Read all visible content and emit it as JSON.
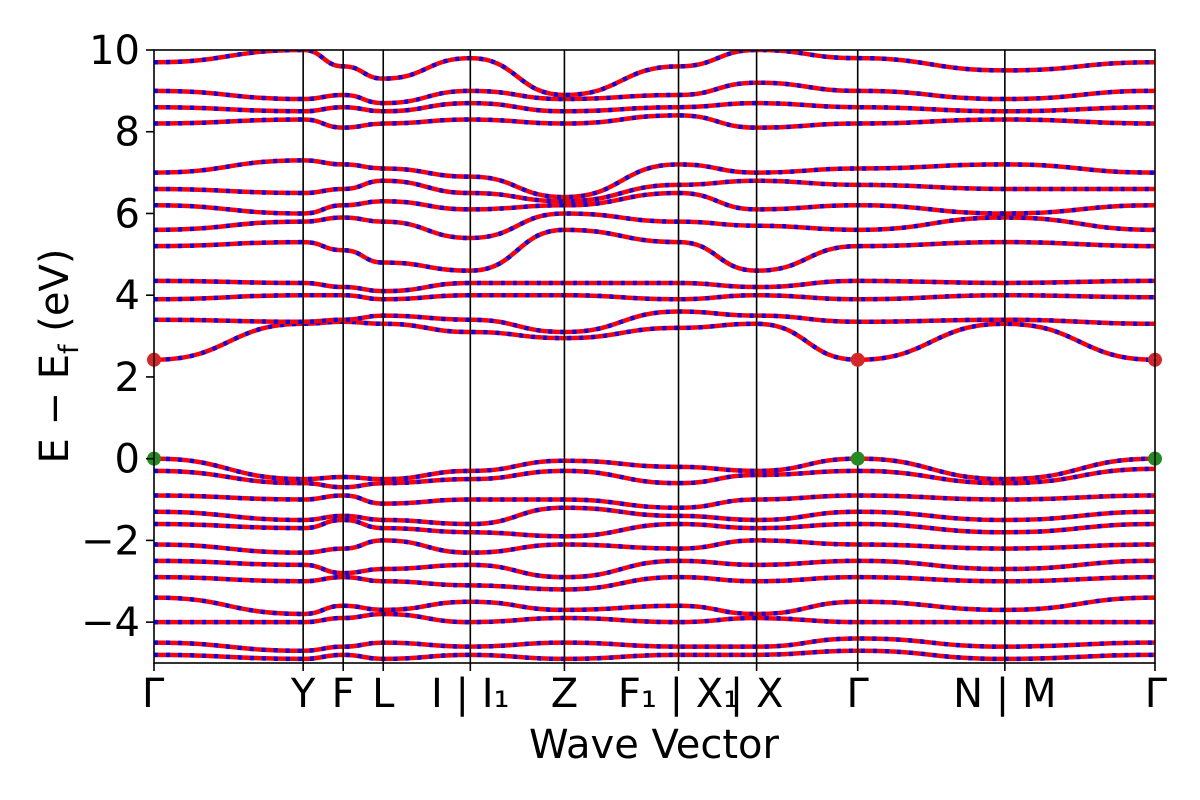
{
  "colors": {
    "band_primary": "#ff0000",
    "band_secondary": "#0000ff",
    "cbm_marker": "#d62728",
    "vbm_marker": "#228b22",
    "axes": "#000000",
    "background": "#ffffff"
  },
  "chart_data": {
    "type": "line",
    "title": "",
    "xlabel": "Wave Vector",
    "ylabel_main": "E − E",
    "ylabel_sub": "f",
    "ylabel_unit": " (eV)",
    "ylim": [
      -5,
      10
    ],
    "yticks": [
      {
        "value": -4,
        "label": "−4"
      },
      {
        "value": -2,
        "label": "−2"
      },
      {
        "value": 0,
        "label": "0"
      },
      {
        "value": 2,
        "label": "2"
      },
      {
        "value": 4,
        "label": "4"
      },
      {
        "value": 6,
        "label": "6"
      },
      {
        "value": 8,
        "label": "8"
      },
      {
        "value": 10,
        "label": "10"
      }
    ],
    "xlim": [
      0,
      10
    ],
    "kpoints": [
      {
        "value": 0.0,
        "label": "Γ"
      },
      {
        "value": 1.49,
        "label": "Y"
      },
      {
        "value": 1.89,
        "label": "F"
      },
      {
        "value": 2.29,
        "label": "L"
      },
      {
        "value": 3.16,
        "label": "I | I₁"
      },
      {
        "value": 4.1,
        "label": "Z"
      },
      {
        "value": 5.24,
        "label": "F₁ | X₁"
      },
      {
        "value": 6.02,
        "label": "| X"
      },
      {
        "value": 7.03,
        "label": "Γ"
      },
      {
        "value": 8.5,
        "label": "N | M"
      },
      {
        "value": 10.0,
        "label": "Γ"
      }
    ],
    "grid": false,
    "legend": "none",
    "special_points": [
      {
        "name": "VBM",
        "x": 0.0,
        "y": 0.0
      },
      {
        "name": "VBM",
        "x": 7.03,
        "y": 0.0
      },
      {
        "name": "VBM",
        "x": 10.0,
        "y": 0.0
      },
      {
        "name": "CBM",
        "x": 0.0,
        "y": 2.42
      },
      {
        "name": "CBM",
        "x": 7.03,
        "y": 2.42
      },
      {
        "name": "CBM",
        "x": 10.0,
        "y": 2.42
      }
    ],
    "bands": [
      {
        "y": [
          2.42,
          3.3,
          3.35,
          3.3,
          3.1,
          2.95,
          3.2,
          3.3,
          2.42,
          3.3,
          2.42
        ]
      },
      {
        "y": [
          3.4,
          3.35,
          3.4,
          3.5,
          3.4,
          3.1,
          3.6,
          3.5,
          3.35,
          3.4,
          3.3
        ]
      },
      {
        "y": [
          3.9,
          4.0,
          4.0,
          3.9,
          4.0,
          4.0,
          3.9,
          4.0,
          3.9,
          4.0,
          3.95
        ]
      },
      {
        "y": [
          4.35,
          4.3,
          4.2,
          4.1,
          4.3,
          4.3,
          4.3,
          4.2,
          4.35,
          4.3,
          4.35
        ]
      },
      {
        "y": [
          5.2,
          5.3,
          5.1,
          4.8,
          4.6,
          5.6,
          5.3,
          4.6,
          5.2,
          5.3,
          5.2
        ]
      },
      {
        "y": [
          5.6,
          5.8,
          5.9,
          5.8,
          5.4,
          6.0,
          5.8,
          5.7,
          5.6,
          5.9,
          5.6
        ]
      },
      {
        "y": [
          6.2,
          6.0,
          6.2,
          6.3,
          6.1,
          6.2,
          6.5,
          6.1,
          6.2,
          6.0,
          6.2
        ]
      },
      {
        "y": [
          6.6,
          6.5,
          6.6,
          6.8,
          6.5,
          6.3,
          6.7,
          6.8,
          6.7,
          6.6,
          6.6
        ]
      },
      {
        "y": [
          7.0,
          7.3,
          7.2,
          7.1,
          6.9,
          6.4,
          7.2,
          7.0,
          7.1,
          7.2,
          7.0
        ]
      },
      {
        "y": [
          8.2,
          8.3,
          8.1,
          8.2,
          8.3,
          8.2,
          8.4,
          8.1,
          8.2,
          8.3,
          8.2
        ]
      },
      {
        "y": [
          8.6,
          8.5,
          8.6,
          8.5,
          8.7,
          8.5,
          8.6,
          8.7,
          8.6,
          8.5,
          8.6
        ]
      },
      {
        "y": [
          9.0,
          8.8,
          8.9,
          8.7,
          9.0,
          8.8,
          8.9,
          9.2,
          9.0,
          8.8,
          9.0
        ]
      },
      {
        "y": [
          9.7,
          10.0,
          9.6,
          9.3,
          9.8,
          8.9,
          9.6,
          10.0,
          9.8,
          9.5,
          9.7
        ]
      },
      {
        "y": [
          0.0,
          -0.5,
          -0.45,
          -0.5,
          -0.3,
          -0.05,
          -0.2,
          -0.3,
          0.0,
          -0.5,
          0.0
        ]
      },
      {
        "y": [
          -0.3,
          -0.6,
          -0.7,
          -0.6,
          -0.5,
          -0.3,
          -0.6,
          -0.4,
          -0.3,
          -0.6,
          -0.25
        ]
      },
      {
        "y": [
          -0.9,
          -1.0,
          -0.9,
          -1.1,
          -1.0,
          -1.0,
          -1.2,
          -1.0,
          -0.9,
          -1.0,
          -0.9
        ]
      },
      {
        "y": [
          -1.3,
          -1.5,
          -1.4,
          -1.5,
          -1.6,
          -1.2,
          -1.4,
          -1.5,
          -1.3,
          -1.5,
          -1.3
        ]
      },
      {
        "y": [
          -1.6,
          -1.7,
          -1.5,
          -1.7,
          -1.8,
          -1.9,
          -1.6,
          -1.7,
          -1.6,
          -1.8,
          -1.6
        ]
      },
      {
        "y": [
          -2.1,
          -2.3,
          -2.2,
          -2.0,
          -2.3,
          -2.1,
          -2.2,
          -2.0,
          -2.1,
          -2.2,
          -2.1
        ]
      },
      {
        "y": [
          -2.5,
          -2.6,
          -2.8,
          -2.7,
          -2.6,
          -2.9,
          -2.5,
          -2.6,
          -2.5,
          -2.7,
          -2.5
        ]
      },
      {
        "y": [
          -2.9,
          -3.0,
          -2.9,
          -3.0,
          -3.1,
          -3.2,
          -2.9,
          -3.0,
          -2.9,
          -3.0,
          -2.9
        ]
      },
      {
        "y": [
          -3.4,
          -3.8,
          -3.6,
          -3.7,
          -3.5,
          -3.7,
          -3.6,
          -3.8,
          -3.5,
          -3.7,
          -3.4
        ]
      },
      {
        "y": [
          -4.0,
          -4.0,
          -3.9,
          -3.8,
          -4.0,
          -3.9,
          -4.0,
          -3.9,
          -4.0,
          -4.0,
          -4.0
        ]
      },
      {
        "y": [
          -4.5,
          -4.7,
          -4.6,
          -4.5,
          -4.6,
          -4.5,
          -4.6,
          -4.6,
          -4.4,
          -4.6,
          -4.5
        ]
      },
      {
        "y": [
          -4.8,
          -4.9,
          -4.8,
          -4.9,
          -4.8,
          -4.9,
          -4.8,
          -4.8,
          -4.7,
          -4.9,
          -4.8
        ]
      }
    ]
  }
}
